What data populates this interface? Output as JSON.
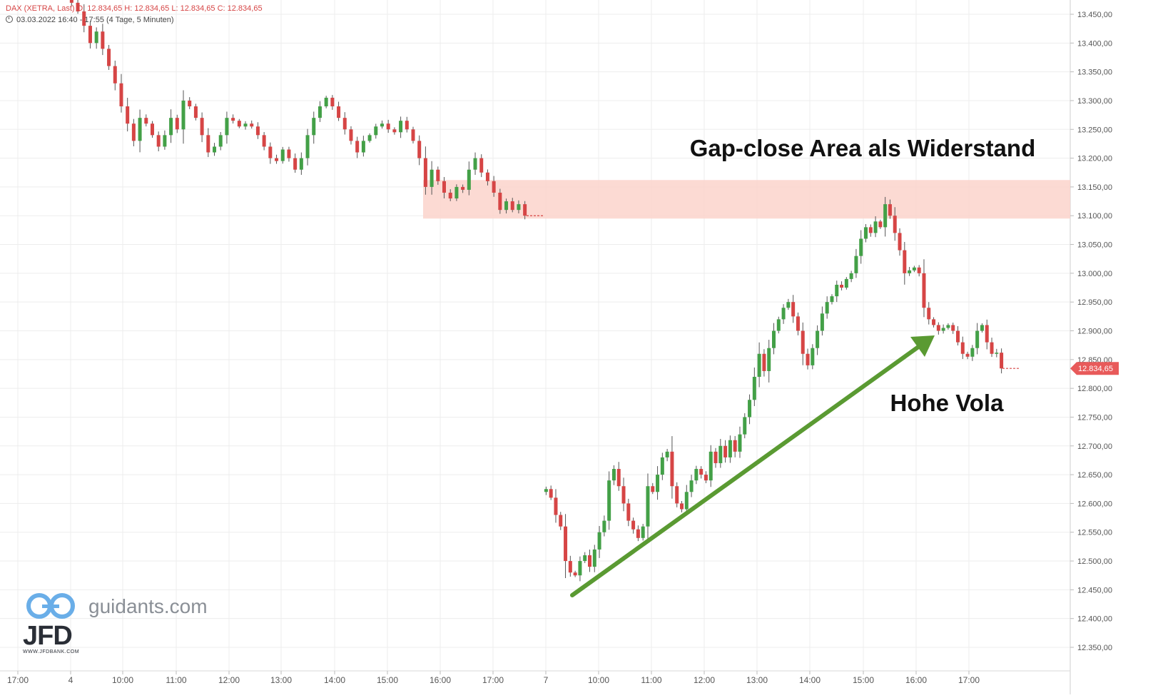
{
  "header": {
    "symbol_line": "DAX (XETRA, Last)   O: 12.834,65   H: 12.834,65   L: 12.834,65   C: 12.834,65",
    "range_line": "03.03.2022 16:40 - 17:55    (4 Tage, 5 Minuten)"
  },
  "logo": {
    "site_text": "guidants.com",
    "brand_text": "JFD",
    "brand_url_text": "WWW.JFDBANK.COM"
  },
  "colors": {
    "up": "#43a047",
    "down": "#d64545",
    "zone": "#fbd3cb",
    "arrow": "#5a9a32",
    "grid": "#ededed"
  },
  "chart_data": {
    "type": "candlestick",
    "title": "",
    "y_axis": {
      "min": 12330,
      "max": 13470,
      "ticks": [
        12350,
        12400,
        12450,
        12500,
        12550,
        12600,
        12650,
        12700,
        12750,
        12800,
        12850,
        12900,
        12950,
        13000,
        13050,
        13100,
        13150,
        13200,
        13250,
        13300,
        13350,
        13400,
        13450
      ],
      "tick_format": "de"
    },
    "x_axis": {
      "labels": [
        "17:00",
        "4",
        "10:00",
        "11:00",
        "12:00",
        "13:00",
        "14:00",
        "15:00",
        "16:00",
        "17:00",
        "7",
        "10:00",
        "11:00",
        "12:00",
        "13:00",
        "14:00",
        "15:00",
        "16:00",
        "17:00"
      ]
    },
    "grid": true,
    "last_price": 12834.65,
    "last_price_label": "12.834,65",
    "session1_prices": [
      13480,
      13470,
      13455,
      13430,
      13400,
      13420,
      13390,
      13360,
      13330,
      13290,
      13260,
      13230,
      13270,
      13260,
      13240,
      13220,
      13240,
      13270,
      13250,
      13300,
      13290,
      13270,
      13240,
      13210,
      13220,
      13240,
      13270,
      13265,
      13255,
      13260,
      13255,
      13240,
      13220,
      13200,
      13195,
      13215,
      13200,
      13180,
      13200,
      13240,
      13270,
      13290,
      13305,
      13290,
      13270,
      13250,
      13230,
      13210,
      13230,
      13240,
      13255,
      13260,
      13250,
      13245,
      13265,
      13250,
      13230,
      13200,
      13150,
      13180,
      13160,
      13140,
      13130,
      13150,
      13145,
      13180,
      13200,
      13175,
      13160,
      13140,
      13110,
      13125,
      13110,
      13120,
      13100
    ],
    "gap_zone": {
      "low": 13095,
      "high": 13162
    },
    "session2_prices": [
      12620,
      12625,
      12610,
      12580,
      12560,
      12500,
      12480,
      12475,
      12500,
      12510,
      12490,
      12520,
      12550,
      12570,
      12640,
      12660,
      12630,
      12600,
      12570,
      12555,
      12540,
      12560,
      12630,
      12620,
      12650,
      12680,
      12690,
      12630,
      12600,
      12590,
      12620,
      12640,
      12660,
      12650,
      12640,
      12690,
      12670,
      12700,
      12680,
      12710,
      12690,
      12720,
      12750,
      12780,
      12820,
      12860,
      12830,
      12870,
      12900,
      12920,
      12940,
      12950,
      12925,
      12900,
      12860,
      12840,
      12870,
      12900,
      12930,
      12950,
      12960,
      12980,
      12975,
      12990,
      13000,
      13030,
      13060,
      13080,
      13070,
      13090,
      13080,
      13120,
      13100,
      13070,
      13040,
      13000,
      13005,
      13010,
      13000,
      12940,
      12920,
      12910,
      12900,
      12905,
      12910,
      12900,
      12880,
      12860,
      12855,
      12870,
      12900,
      12910,
      12880,
      12860,
      12862,
      12834.65
    ],
    "annotations": [
      {
        "text": "Gap-close Area als Widerstand"
      },
      {
        "text": "Hohe Vola"
      }
    ]
  }
}
